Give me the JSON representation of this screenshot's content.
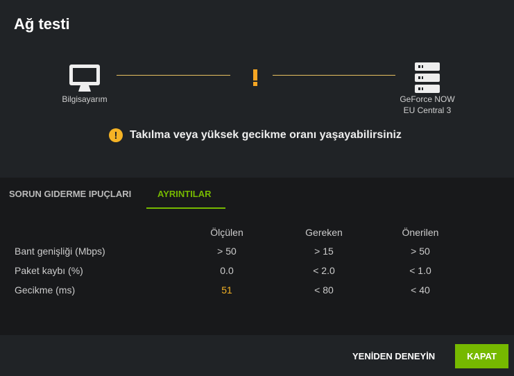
{
  "title": "Ağ testi",
  "diagram": {
    "left_label": "Bilgisayarım",
    "right_label_1": "GeForce NOW",
    "right_label_2": "EU Central 3",
    "status_icon": "exclamation-icon",
    "line_color": "#e8c060"
  },
  "warning": "Takılma veya yüksek gecikme oranı yaşayabilirsiniz",
  "tabs": [
    {
      "label": "SORUN GIDERME IPUÇLARI",
      "active": false
    },
    {
      "label": "AYRINTILAR",
      "active": true
    }
  ],
  "table": {
    "headers": [
      "Ölçülen",
      "Gereken",
      "Önerilen"
    ],
    "rows": [
      {
        "label": "Bant genişliği (Mbps)",
        "values": [
          "> 50",
          "> 15",
          "> 50"
        ]
      },
      {
        "label": "Paket kaybı (%)",
        "values": [
          "0.0",
          "< 2.0",
          "< 1.0"
        ]
      },
      {
        "label": "Gecikme (ms)",
        "values": [
          "51",
          "< 80",
          "< 40"
        ],
        "warning_value": true
      }
    ]
  },
  "buttons": {
    "retry": "YENİDEN DENEYİN",
    "close": "KAPAT"
  },
  "colors": {
    "accent": "#76b900",
    "warning": "#f5b325"
  }
}
